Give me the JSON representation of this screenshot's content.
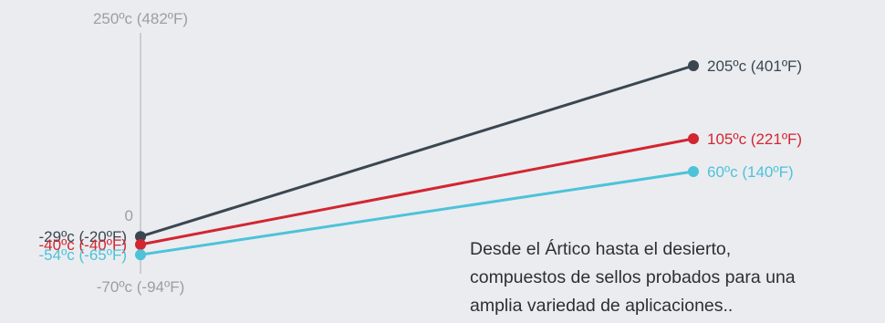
{
  "chart_data": {
    "type": "line",
    "y_axis": {
      "min": -70,
      "max": 250,
      "tick_labels": [
        {
          "value": 250,
          "label": "250ºc (482ºF)"
        },
        {
          "value": 0,
          "label": "0"
        },
        {
          "value": -70,
          "label": "-70ºc (-94ºF)"
        }
      ]
    },
    "grid": false,
    "series": [
      {
        "color": "#3a4650",
        "values": [
          -29,
          205
        ],
        "start_label": "-29ºc (-20ºF)",
        "end_label": "205ºc (401ºF)"
      },
      {
        "color": "#d22630",
        "values": [
          -40,
          105
        ],
        "start_label": "-40ºc (-40ºF)",
        "end_label": "105ºc (221ºF)"
      },
      {
        "color": "#4cc3d9",
        "values": [
          -54,
          60
        ],
        "start_label": "-54ºc (-65ºF)",
        "end_label": "60ºc (140ºF)"
      }
    ]
  },
  "caption": {
    "lines": [
      "Desde el Ártico hasta el desierto,",
      "compuestos de sellos probados para una",
      "amplia variedad de aplicaciones.."
    ]
  }
}
